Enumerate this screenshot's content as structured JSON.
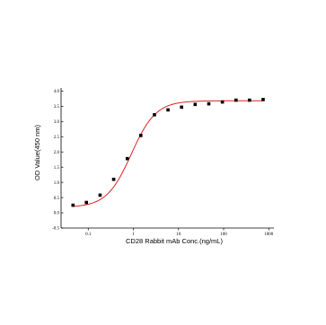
{
  "chart_data": {
    "type": "scatter",
    "xlabel": "CD28 Rabbit mAb Conc.(ng/mL)",
    "ylabel": "OD Value(450 nm)",
    "x_scale": "log",
    "xlim": [
      0.025,
      1300
    ],
    "ylim": [
      -0.5,
      4.1
    ],
    "x_ticks": [
      0.1,
      1,
      10,
      100,
      1000
    ],
    "x_tick_labels": [
      "0.1",
      "1",
      "10",
      "100",
      "1000"
    ],
    "y_ticks": [
      -0.5,
      0.0,
      0.5,
      1.0,
      1.5,
      2.0,
      2.5,
      3.0,
      3.5,
      4.0
    ],
    "y_tick_labels": [
      "-0.5",
      "0.0",
      "0.5",
      "1.0",
      "1.5",
      "2.0",
      "2.5",
      "3.0",
      "3.5",
      "4.0"
    ],
    "grid": false,
    "legend": "none",
    "marker_color": "#000000",
    "fit_color": "#e02020",
    "series": [
      {
        "x": [
          0.046,
          0.091,
          0.183,
          0.366,
          0.732,
          1.46,
          2.93,
          5.86,
          11.7,
          23.4,
          46.9,
          93.8,
          188,
          375,
          750
        ],
        "y": [
          0.25,
          0.34,
          0.58,
          1.1,
          1.78,
          2.54,
          3.22,
          3.38,
          3.47,
          3.56,
          3.58,
          3.64,
          3.7,
          3.7,
          3.72
        ]
      }
    ],
    "fit": {
      "model": "4PL",
      "bottom": 0.18,
      "top": 3.68,
      "ec50": 0.9,
      "hill": 1.6
    }
  }
}
